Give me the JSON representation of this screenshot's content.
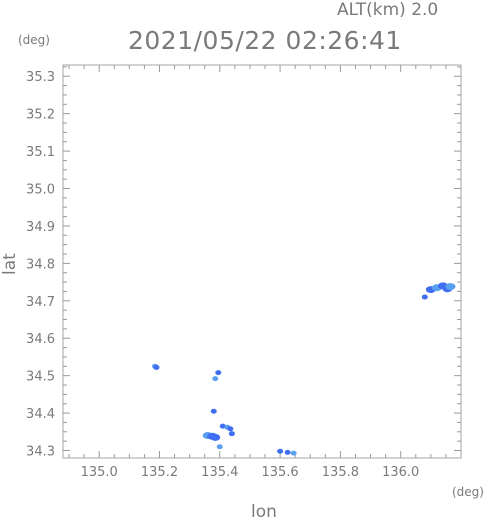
{
  "header": {
    "altitude_label": "ALT(km) 2.0",
    "timestamp": "2021/05/22 02:26:41"
  },
  "axes": {
    "y_unit": "(deg)",
    "x_unit": "(deg)",
    "y_title": "lat",
    "x_title": "lon"
  },
  "chart_data": {
    "type": "scatter",
    "title": "2021/05/22 02:26:41",
    "xlabel": "lon",
    "ylabel": "lat",
    "xlim": [
      134.88,
      136.2
    ],
    "ylim": [
      34.28,
      35.33
    ],
    "xticks": [
      "135.0",
      "135.2",
      "135.4",
      "135.6",
      "135.8",
      "136.0"
    ],
    "yticks": [
      "34.3",
      "34.4",
      "34.5",
      "34.6",
      "34.7",
      "34.8",
      "34.9",
      "35.0",
      "35.1",
      "35.2",
      "35.3"
    ],
    "grid": false,
    "colors": {
      "echo": "#3f6ef0",
      "echo_light": "#5ba0f0",
      "axis": "#9a9a9a"
    },
    "series": [
      {
        "values": [
          {
            "x": 135.185,
            "y": 34.525
          },
          {
            "x": 135.19,
            "y": 34.522
          },
          {
            "x": 135.395,
            "y": 34.508
          },
          {
            "x": 135.385,
            "y": 34.492
          },
          {
            "x": 135.38,
            "y": 34.405
          },
          {
            "x": 135.41,
            "y": 34.365
          },
          {
            "x": 135.425,
            "y": 34.362
          },
          {
            "x": 135.435,
            "y": 34.358
          },
          {
            "x": 135.44,
            "y": 34.345
          },
          {
            "x": 135.36,
            "y": 34.34
          },
          {
            "x": 135.375,
            "y": 34.338
          },
          {
            "x": 135.385,
            "y": 34.335
          },
          {
            "x": 135.4,
            "y": 34.31
          },
          {
            "x": 135.6,
            "y": 34.298
          },
          {
            "x": 135.625,
            "y": 34.295
          },
          {
            "x": 135.645,
            "y": 34.293
          },
          {
            "x": 136.08,
            "y": 34.71
          },
          {
            "x": 136.1,
            "y": 34.73
          },
          {
            "x": 136.12,
            "y": 34.735
          },
          {
            "x": 136.14,
            "y": 34.74
          },
          {
            "x": 136.155,
            "y": 34.732
          },
          {
            "x": 136.165,
            "y": 34.738
          }
        ]
      }
    ]
  }
}
